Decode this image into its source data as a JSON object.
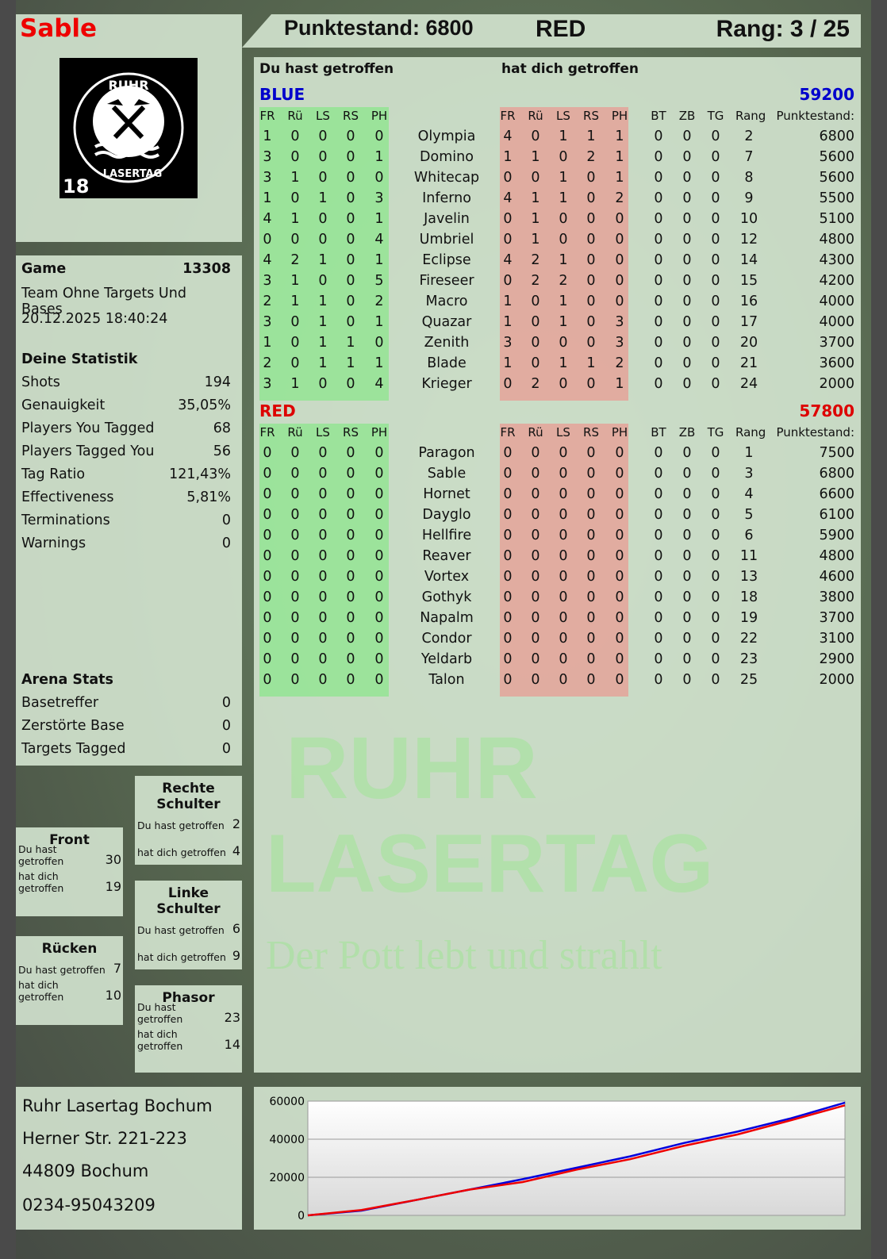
{
  "player": {
    "name": "Sable",
    "score_label": "Punktestand: 6800",
    "team": "RED",
    "rank_label": "Rang: 3 / 25"
  },
  "logo": {
    "text_top": "RUHR",
    "text_bottom": "LASERTAG",
    "age": "18",
    "icon": "crossed-hammers-icon"
  },
  "game": {
    "label": "Game",
    "number": "13308",
    "mode": "Team Ohne Targets Und Bases",
    "datetime": "20.12.2025 18:40:24"
  },
  "stats": {
    "title": "Deine Statistik",
    "items": [
      {
        "label": "Shots",
        "value": "194"
      },
      {
        "label": "Genauigkeit",
        "value": "35,05%"
      },
      {
        "label": "Players You Tagged",
        "value": "68"
      },
      {
        "label": "Players Tagged You",
        "value": "56"
      },
      {
        "label": "Tag Ratio",
        "value": "121,43%"
      },
      {
        "label": "Effectiveness",
        "value": "5,81%"
      },
      {
        "label": "Terminations",
        "value": "0"
      },
      {
        "label": "Warnings",
        "value": "0"
      }
    ]
  },
  "arena": {
    "title": "Arena Stats",
    "items": [
      {
        "label": "Basetreffer",
        "value": "0"
      },
      {
        "label": "Zerstörte Base",
        "value": "0"
      },
      {
        "label": "Targets Tagged",
        "value": "0"
      }
    ]
  },
  "zones": [
    {
      "title": "Rechte Schulter",
      "hit_label": "Du hast getroffen",
      "hit": "2",
      "got_label": "hat dich getroffen",
      "got": "4"
    },
    {
      "title": "Front",
      "hit_label": "Du hast getroffen",
      "hit": "30",
      "got_label": "hat dich getroffen",
      "got": "19"
    },
    {
      "title": "Linke Schulter",
      "hit_label": "Du hast getroffen",
      "hit": "6",
      "got_label": "hat dich getroffen",
      "got": "9"
    },
    {
      "title": "Rücken",
      "hit_label": "Du hast getroffen",
      "hit": "7",
      "got_label": "hat dich getroffen",
      "got": "10"
    },
    {
      "title": "Phasor",
      "hit_label": "Du hast getroffen",
      "hit": "23",
      "got_label": "hat dich getroffen",
      "got": "14"
    }
  ],
  "address": [
    "Ruhr Lasertag Bochum",
    "Herner Str. 221-223",
    "44809 Bochum",
    "0234-95043209"
  ],
  "table": {
    "you_hit": "Du hast getroffen",
    "hit_you": "hat dich getroffen",
    "hit_cols": [
      "FR",
      "Rü",
      "LS",
      "RS",
      "PH"
    ],
    "extra_cols": [
      "BT",
      "ZB",
      "TG",
      "Rang",
      "Punktestand:"
    ],
    "teams": [
      {
        "name": "BLUE",
        "total": "59200",
        "color": "#0000cc",
        "players": [
          [
            "Olympia",
            [
              1,
              0,
              0,
              0,
              0
            ],
            [
              4,
              0,
              1,
              1,
              1
            ],
            [
              0,
              0,
              0
            ],
            2,
            6800
          ],
          [
            "Domino",
            [
              3,
              0,
              0,
              0,
              1
            ],
            [
              1,
              1,
              0,
              2,
              1
            ],
            [
              0,
              0,
              0
            ],
            7,
            5600
          ],
          [
            "Whitecap",
            [
              3,
              1,
              0,
              0,
              0
            ],
            [
              0,
              0,
              1,
              0,
              1
            ],
            [
              0,
              0,
              0
            ],
            8,
            5600
          ],
          [
            "Inferno",
            [
              1,
              0,
              1,
              0,
              3
            ],
            [
              4,
              1,
              1,
              0,
              2
            ],
            [
              0,
              0,
              0
            ],
            9,
            5500
          ],
          [
            "Javelin",
            [
              4,
              1,
              0,
              0,
              1
            ],
            [
              0,
              1,
              0,
              0,
              0
            ],
            [
              0,
              0,
              0
            ],
            10,
            5100
          ],
          [
            "Umbriel",
            [
              0,
              0,
              0,
              0,
              4
            ],
            [
              0,
              1,
              0,
              0,
              0
            ],
            [
              0,
              0,
              0
            ],
            12,
            4800
          ],
          [
            "Eclipse",
            [
              4,
              2,
              1,
              0,
              1
            ],
            [
              4,
              2,
              1,
              0,
              0
            ],
            [
              0,
              0,
              0
            ],
            14,
            4300
          ],
          [
            "Fireseer",
            [
              3,
              1,
              0,
              0,
              5
            ],
            [
              0,
              2,
              2,
              0,
              0
            ],
            [
              0,
              0,
              0
            ],
            15,
            4200
          ],
          [
            "Macro",
            [
              2,
              1,
              1,
              0,
              2
            ],
            [
              1,
              0,
              1,
              0,
              0
            ],
            [
              0,
              0,
              0
            ],
            16,
            4000
          ],
          [
            "Quazar",
            [
              3,
              0,
              1,
              0,
              1
            ],
            [
              1,
              0,
              1,
              0,
              3
            ],
            [
              0,
              0,
              0
            ],
            17,
            4000
          ],
          [
            "Zenith",
            [
              1,
              0,
              1,
              1,
              0
            ],
            [
              3,
              0,
              0,
              0,
              3
            ],
            [
              0,
              0,
              0
            ],
            20,
            3700
          ],
          [
            "Blade",
            [
              2,
              0,
              1,
              1,
              1
            ],
            [
              1,
              0,
              1,
              1,
              2
            ],
            [
              0,
              0,
              0
            ],
            21,
            3600
          ],
          [
            "Krieger",
            [
              3,
              1,
              0,
              0,
              4
            ],
            [
              0,
              2,
              0,
              0,
              1
            ],
            [
              0,
              0,
              0
            ],
            24,
            2000
          ]
        ]
      },
      {
        "name": "RED",
        "total": "57800",
        "color": "#dd0000",
        "players": [
          [
            "Paragon",
            [
              0,
              0,
              0,
              0,
              0
            ],
            [
              0,
              0,
              0,
              0,
              0
            ],
            [
              0,
              0,
              0
            ],
            1,
            7500
          ],
          [
            "Sable",
            [
              0,
              0,
              0,
              0,
              0
            ],
            [
              0,
              0,
              0,
              0,
              0
            ],
            [
              0,
              0,
              0
            ],
            3,
            6800
          ],
          [
            "Hornet",
            [
              0,
              0,
              0,
              0,
              0
            ],
            [
              0,
              0,
              0,
              0,
              0
            ],
            [
              0,
              0,
              0
            ],
            4,
            6600
          ],
          [
            "Dayglo",
            [
              0,
              0,
              0,
              0,
              0
            ],
            [
              0,
              0,
              0,
              0,
              0
            ],
            [
              0,
              0,
              0
            ],
            5,
            6100
          ],
          [
            "Hellfire",
            [
              0,
              0,
              0,
              0,
              0
            ],
            [
              0,
              0,
              0,
              0,
              0
            ],
            [
              0,
              0,
              0
            ],
            6,
            5900
          ],
          [
            "Reaver",
            [
              0,
              0,
              0,
              0,
              0
            ],
            [
              0,
              0,
              0,
              0,
              0
            ],
            [
              0,
              0,
              0
            ],
            11,
            4800
          ],
          [
            "Vortex",
            [
              0,
              0,
              0,
              0,
              0
            ],
            [
              0,
              0,
              0,
              0,
              0
            ],
            [
              0,
              0,
              0
            ],
            13,
            4600
          ],
          [
            "Gothyk",
            [
              0,
              0,
              0,
              0,
              0
            ],
            [
              0,
              0,
              0,
              0,
              0
            ],
            [
              0,
              0,
              0
            ],
            18,
            3800
          ],
          [
            "Napalm",
            [
              0,
              0,
              0,
              0,
              0
            ],
            [
              0,
              0,
              0,
              0,
              0
            ],
            [
              0,
              0,
              0
            ],
            19,
            3700
          ],
          [
            "Condor",
            [
              0,
              0,
              0,
              0,
              0
            ],
            [
              0,
              0,
              0,
              0,
              0
            ],
            [
              0,
              0,
              0
            ],
            22,
            3100
          ],
          [
            "Yeldarb",
            [
              0,
              0,
              0,
              0,
              0
            ],
            [
              0,
              0,
              0,
              0,
              0
            ],
            [
              0,
              0,
              0
            ],
            23,
            2900
          ],
          [
            "Talon",
            [
              0,
              0,
              0,
              0,
              0
            ],
            [
              0,
              0,
              0,
              0,
              0
            ],
            [
              0,
              0,
              0
            ],
            25,
            2000
          ]
        ]
      }
    ]
  },
  "watermark": {
    "line1": "RUHR",
    "line2": "LASERTAG",
    "slogan": "Der Pott lebt und strahlt"
  },
  "colors": {
    "blue": "#0000dd",
    "red": "#ee0000",
    "hit_green": "#8ce68c",
    "got_red": "#e6a096"
  },
  "chart_data": {
    "type": "line",
    "ylim": [
      0,
      60000
    ],
    "yticks": [
      0,
      20000,
      40000,
      60000
    ],
    "grid": true,
    "x": [
      0,
      1,
      2,
      3,
      4,
      5,
      6,
      7,
      8,
      9,
      10
    ],
    "series": [
      {
        "color": "#0000dd",
        "values": [
          0,
          2500,
          8000,
          13500,
          19000,
          25000,
          31000,
          38000,
          44000,
          51000,
          59200
        ]
      },
      {
        "color": "#ee0000",
        "values": [
          0,
          2800,
          8000,
          13500,
          17500,
          24000,
          29500,
          36500,
          42500,
          50000,
          57800
        ]
      }
    ]
  }
}
